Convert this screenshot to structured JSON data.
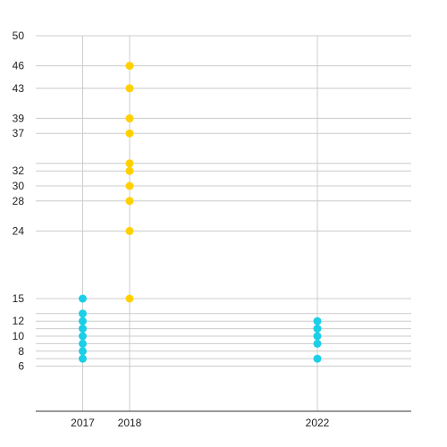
{
  "chart_data": {
    "type": "scatter",
    "title": "",
    "xlabel": "",
    "ylabel": "",
    "x_ticks": [
      2017,
      2018,
      2022
    ],
    "xlim": [
      2016,
      2024
    ],
    "y_ticks": [
      6,
      8,
      10,
      12,
      15,
      24,
      28,
      30,
      32,
      37,
      39,
      43,
      46,
      50
    ],
    "y_gridlines": [
      6,
      7,
      8,
      9,
      10,
      11,
      12,
      13,
      15,
      24,
      28,
      30,
      32,
      33,
      37,
      39,
      43,
      46,
      50
    ],
    "ylim": [
      0,
      50
    ],
    "grid": true,
    "legend": "none",
    "series": [
      {
        "color": "#1ccfe6",
        "points": [
          {
            "x": 2017,
            "y": 15
          },
          {
            "x": 2017,
            "y": 13
          },
          {
            "x": 2017,
            "y": 12
          },
          {
            "x": 2017,
            "y": 11
          },
          {
            "x": 2017,
            "y": 10
          },
          {
            "x": 2017,
            "y": 9
          },
          {
            "x": 2017,
            "y": 8
          },
          {
            "x": 2017,
            "y": 7
          },
          {
            "x": 2022,
            "y": 12
          },
          {
            "x": 2022,
            "y": 11
          },
          {
            "x": 2022,
            "y": 10
          },
          {
            "x": 2022,
            "y": 9
          },
          {
            "x": 2022,
            "y": 7
          }
        ]
      },
      {
        "color": "#ffd000",
        "points": [
          {
            "x": 2018,
            "y": 46
          },
          {
            "x": 2018,
            "y": 43
          },
          {
            "x": 2018,
            "y": 39
          },
          {
            "x": 2018,
            "y": 37
          },
          {
            "x": 2018,
            "y": 33
          },
          {
            "x": 2018,
            "y": 32
          },
          {
            "x": 2018,
            "y": 30
          },
          {
            "x": 2018,
            "y": 28
          },
          {
            "x": 2018,
            "y": 24
          },
          {
            "x": 2018,
            "y": 15
          }
        ]
      }
    ],
    "colors": {
      "grid": "#cccccc",
      "axis": "#333333",
      "text": "#222222"
    }
  }
}
